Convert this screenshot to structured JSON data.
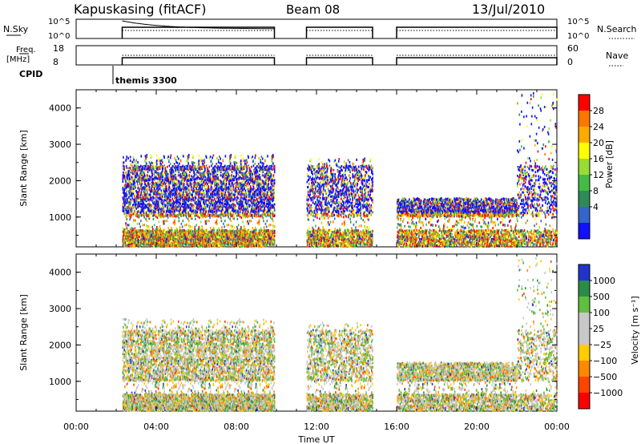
{
  "header": {
    "station": "Kapuskasing (fitACF)",
    "beam": "Beam 08",
    "date": "13/Jul/2010"
  },
  "top_panels": {
    "nsky_label": "N.Sky",
    "nsky_ticks": [
      "10^5",
      "10^0"
    ],
    "nsearch_label": "N.Search",
    "nsearch_ticks": [
      "10^5",
      "10^0"
    ],
    "freq_label_1": "Freq.",
    "freq_label_2": "[MHz]",
    "freq_ticks": [
      "18",
      "8"
    ],
    "nave_label": "Nave",
    "nave_ticks": [
      "60",
      "0"
    ],
    "cpid_label": "CPID",
    "cpid_value": "themis 3300"
  },
  "chart_data": [
    {
      "type": "heatmap",
      "name": "power",
      "ylabel": "Slant Range [km]",
      "yticks": [
        "1000",
        "2000",
        "3000",
        "4000"
      ],
      "yticks_values": [
        1000,
        2000,
        3000,
        4000
      ],
      "ylim": [
        180,
        4500
      ],
      "colorbar_label": "Power [dB]",
      "colorbar_ticks": [
        "28",
        "24",
        "20",
        "16",
        "12",
        "8",
        "4"
      ],
      "colorbar_colors": [
        "#ff0000",
        "#ff7700",
        "#ffaa00",
        "#ffff00",
        "#99dd33",
        "#44bb44",
        "#2e8b57",
        "#3366cc",
        "#1111ff"
      ],
      "xlim": [
        0,
        24
      ],
      "scatter_regions": [
        {
          "start": 2.3,
          "end": 9.9,
          "rmin": 180,
          "rmax": 2700,
          "density": 0.5
        },
        {
          "start": 11.5,
          "end": 14.8,
          "rmin": 180,
          "rmax": 2600,
          "density": 0.35
        },
        {
          "start": 16.0,
          "end": 22.0,
          "rmin": 180,
          "rmax": 1500,
          "density": 0.3
        },
        {
          "start": 22.0,
          "end": 24.0,
          "rmin": 180,
          "rmax": 4400,
          "density": 0.25
        }
      ]
    },
    {
      "type": "heatmap",
      "name": "velocity",
      "ylabel": "Slant Range [km]",
      "yticks": [
        "1000",
        "2000",
        "3000",
        "4000"
      ],
      "yticks_values": [
        1000,
        2000,
        3000,
        4000
      ],
      "ylim": [
        180,
        4500
      ],
      "colorbar_label": "Velocity [m s⁻¹]",
      "colorbar_ticks": [
        "1000",
        "500",
        "100",
        "25",
        "−25",
        "−100",
        "−500",
        "−1000"
      ],
      "colorbar_colors": [
        "#2233cc",
        "#2b8c4a",
        "#5fbf3f",
        "#c8c8c8",
        "#c8c8c8",
        "#ffcc00",
        "#ff8800",
        "#ff4400",
        "#ff0000"
      ],
      "xlim": [
        0,
        24
      ],
      "xticks": [
        "00:00",
        "04:00",
        "08:00",
        "12:00",
        "16:00",
        "20:00",
        "00:00"
      ],
      "xticks_values": [
        0,
        4,
        8,
        12,
        16,
        20,
        24
      ],
      "xlabel": "Time UT"
    }
  ],
  "colors": {
    "axis": "#000000"
  }
}
